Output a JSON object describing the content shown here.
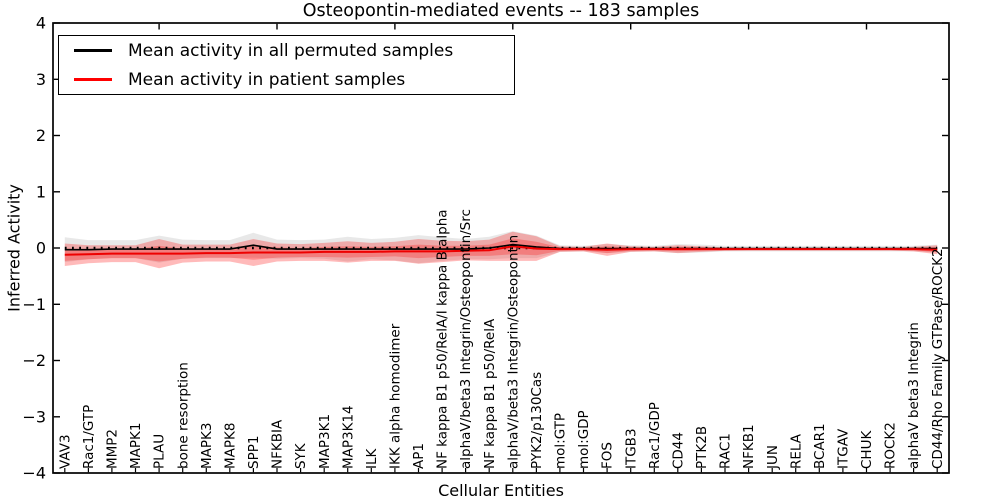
{
  "title": "Osteopontin-mediated events -- 183 samples",
  "axes": {
    "xlabel": "Cellular Entities",
    "ylabel": "Inferred Activity"
  },
  "legend": {
    "position": "upper left",
    "items": [
      {
        "label": "Mean activity in all permuted samples",
        "color": "#000000"
      },
      {
        "label": "Mean activity in patient samples",
        "color": "#ff0000"
      }
    ]
  },
  "chart_data": {
    "type": "line",
    "title": "Osteopontin-mediated events -- 183 samples",
    "xlabel": "Cellular Entities",
    "ylabel": "Inferred Activity",
    "ylim": [
      -4,
      4
    ],
    "yticks": [
      4,
      3,
      2,
      1,
      0,
      -1,
      -2,
      -3,
      -4
    ],
    "grid": false,
    "legend_position": "upper left",
    "zero_line": {
      "y": 0,
      "style": "dotted",
      "color": "#000000"
    },
    "categories": [
      "VAV3",
      "Rac1/GTP",
      "MMP2",
      "MAPK1",
      "PLAU",
      "bone resorption",
      "MAPK3",
      "MAPK8",
      "SPP1",
      "NFKBIA",
      "SYK",
      "MAP3K1",
      "MAP3K14",
      "ILK",
      "IKK alpha homodimer",
      "AP1",
      "NF kappa B1 p50/RelA/I kappa B alpha",
      "alphaV/beta3 Integrin/Osteopontin/Src",
      "NF kappa B1 p50/RelA",
      "alphaV/beta3 Integrin/Osteopontin",
      "PYK2/p130Cas",
      "mol:GTP",
      "mol:GDP",
      "FOS",
      "ITGB3",
      "Rac1/GDP",
      "CD44",
      "PTK2B",
      "RAC1",
      "NFKB1",
      "JUN",
      "RELA",
      "BCAR1",
      "ITGAV",
      "CHUK",
      "ROCK2",
      "alphaV beta3 Integrin",
      "CD44/Rho Family GTPase/ROCK2"
    ],
    "series": [
      {
        "name": "Mean activity in all permuted samples",
        "color": "#000000",
        "values": [
          -0.03,
          -0.03,
          -0.02,
          -0.02,
          -0.02,
          -0.02,
          -0.02,
          -0.02,
          0.05,
          -0.02,
          -0.02,
          -0.02,
          -0.02,
          -0.02,
          -0.02,
          -0.02,
          -0.02,
          -0.02,
          0,
          0.06,
          0.02,
          -0.01,
          -0.01,
          -0.01,
          -0.01,
          -0.01,
          -0.01,
          -0.01,
          -0.01,
          -0.01,
          -0.01,
          -0.01,
          -0.01,
          -0.01,
          -0.01,
          -0.01,
          -0.01,
          -0.01
        ]
      },
      {
        "name": "Mean activity in patient samples",
        "color": "#ee0000",
        "values": [
          -0.12,
          -0.11,
          -0.1,
          -0.1,
          -0.1,
          -0.1,
          -0.09,
          -0.09,
          -0.08,
          -0.08,
          -0.08,
          -0.07,
          -0.07,
          -0.07,
          -0.06,
          -0.06,
          -0.06,
          -0.05,
          -0.04,
          0.03,
          -0.01,
          -0.02,
          -0.02,
          -0.03,
          -0.02,
          -0.02,
          -0.02,
          -0.02,
          -0.02,
          -0.02,
          -0.02,
          -0.02,
          -0.02,
          -0.02,
          -0.02,
          -0.02,
          -0.02,
          -0.03
        ]
      }
    ],
    "bands": [
      {
        "name": "permuted-samples-std-band",
        "color": "rgba(80,80,80,0.13)",
        "center_series": 0,
        "half_widths": [
          0.22,
          0.17,
          0.16,
          0.16,
          0.24,
          0.17,
          0.16,
          0.16,
          0.22,
          0.17,
          0.16,
          0.17,
          0.22,
          0.18,
          0.2,
          0.25,
          0.21,
          0.18,
          0.2,
          0.24,
          0.2,
          0.06,
          0.05,
          0.08,
          0.06,
          0.05,
          0.08,
          0.07,
          0.05,
          0.05,
          0.05,
          0.05,
          0.05,
          0.05,
          0.05,
          0.05,
          0.05,
          0.07
        ]
      },
      {
        "name": "patient-samples-std-outer-band",
        "color": "rgba(255,0,0,0.27)",
        "center_series": 1,
        "half_widths": [
          0.2,
          0.16,
          0.15,
          0.15,
          0.26,
          0.16,
          0.15,
          0.15,
          0.24,
          0.16,
          0.15,
          0.16,
          0.19,
          0.16,
          0.17,
          0.22,
          0.19,
          0.17,
          0.19,
          0.26,
          0.22,
          0.05,
          0.04,
          0.11,
          0.05,
          0.04,
          0.07,
          0.05,
          0.03,
          0.025,
          0.025,
          0.025,
          0.025,
          0.025,
          0.025,
          0.025,
          0.04,
          0.08
        ]
      },
      {
        "name": "patient-samples-std-inner-band",
        "color": "rgba(255,0,0,0.25)",
        "center_series": 1,
        "half_widths": [
          0.11,
          0.09,
          0.08,
          0.08,
          0.14,
          0.09,
          0.08,
          0.08,
          0.13,
          0.09,
          0.08,
          0.09,
          0.1,
          0.09,
          0.09,
          0.12,
          0.1,
          0.09,
          0.1,
          0.14,
          0.12,
          0.03,
          0.02,
          0.06,
          0.03,
          0.02,
          0.04,
          0.03,
          0.02,
          0.015,
          0.015,
          0.015,
          0.015,
          0.015,
          0.015,
          0.015,
          0.02,
          0.045
        ]
      }
    ]
  }
}
